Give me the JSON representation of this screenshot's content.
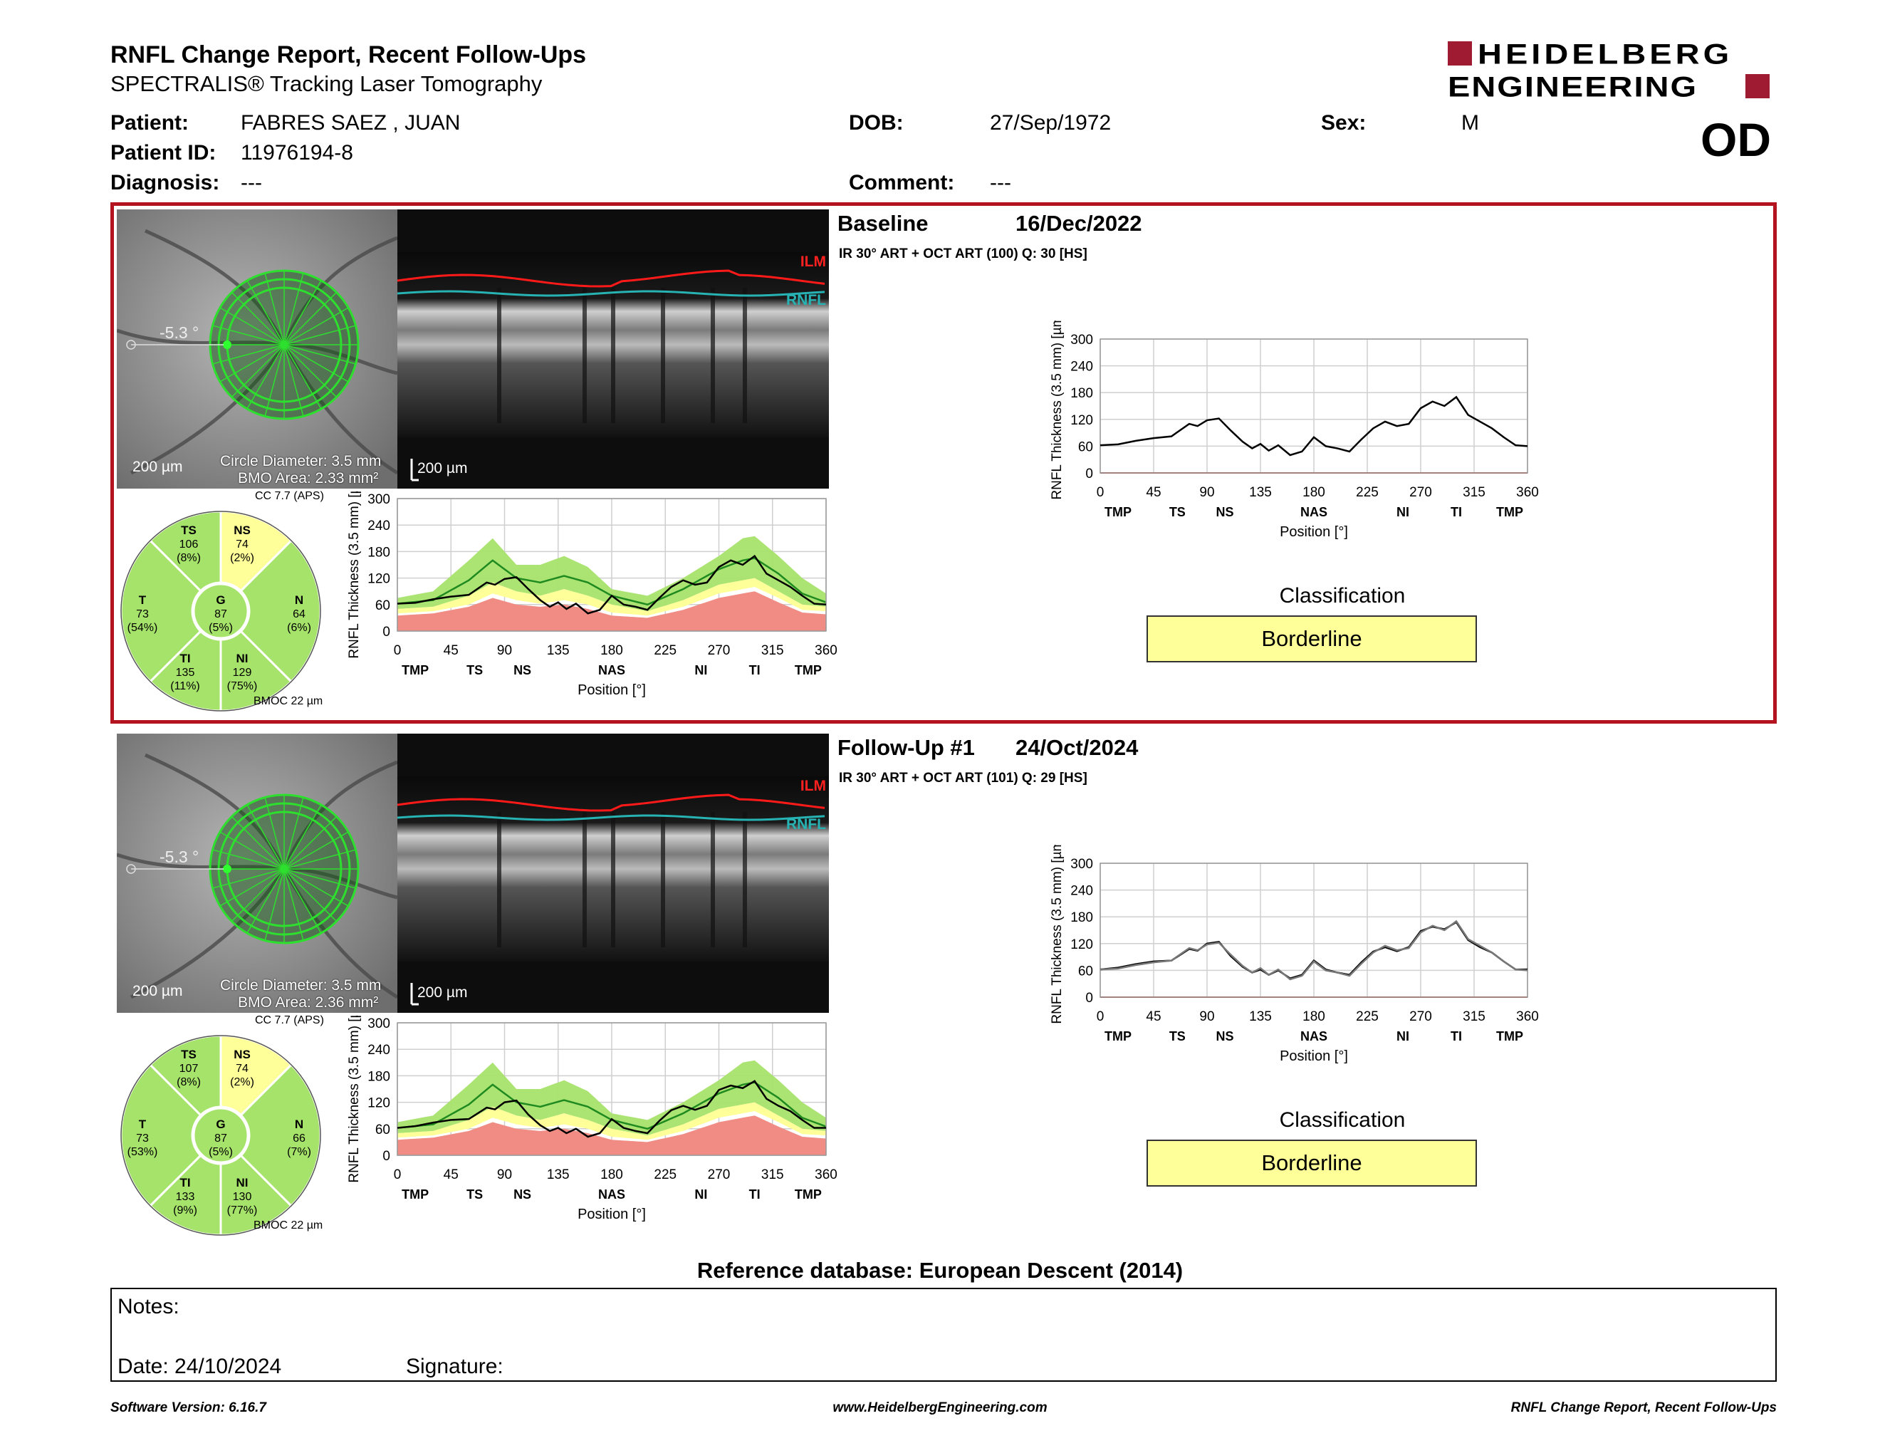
{
  "header": {
    "title": "RNFL Change Report, Recent Follow-Ups",
    "subtitle": "SPECTRALIS® Tracking Laser Tomography",
    "brand_line1": "HEIDELBERG",
    "brand_line2": "ENGINEERING",
    "eye": "OD"
  },
  "patient": {
    "patient_label": "Patient:",
    "patient_value": "FABRES SAEZ , JUAN",
    "id_label": "Patient ID:",
    "id_value": "11976194-8",
    "diagnosis_label": "Diagnosis:",
    "diagnosis_value": "---",
    "dob_label": "DOB:",
    "dob_value": "27/Sep/1972",
    "comment_label": "Comment:",
    "comment_value": "---",
    "sex_label": "Sex:",
    "sex_value": "M"
  },
  "colors": {
    "frame_red": "#b3141f",
    "brand_red": "#9e1b32",
    "normal_green": "#a6e36a",
    "borderline_yellow": "#ffff99",
    "below_red": "#f08c84"
  },
  "scans": [
    {
      "heading": "Baseline",
      "date": "16/Dec/2022",
      "info": "IR 30° ART + OCT ART (100) Q: 30 [HS]",
      "fundus_angle": "-5.3 °",
      "fundus_scale": "200 µm",
      "circle_diameter": "Circle Diameter: 3.5 mm",
      "bmo_area": "BMO Area: 2.33 mm²",
      "cc_label": "CC 7.7 (APS)",
      "oct_scale": "200 µm",
      "ilm_label": "ILM",
      "rnfl_label": "RNFL",
      "sectors": {
        "TS": {
          "label": "TS",
          "value": "106",
          "pct": "(8%)"
        },
        "NS": {
          "label": "NS",
          "value": "74",
          "pct": "(2%)"
        },
        "T": {
          "label": "T",
          "value": "73",
          "pct": "(54%)"
        },
        "G": {
          "label": "G",
          "value": "87",
          "pct": "(5%)"
        },
        "N": {
          "label": "N",
          "value": "64",
          "pct": "(6%)"
        },
        "TI": {
          "label": "TI",
          "value": "135",
          "pct": "(11%)"
        },
        "NI": {
          "label": "NI",
          "value": "129",
          "pct": "(75%)"
        }
      },
      "bmoc": "BMOC 22 µm",
      "classification_title": "Classification",
      "classification": "Borderline"
    },
    {
      "heading": "Follow-Up #1",
      "date": "24/Oct/2024",
      "info": "IR 30° ART + OCT ART (101) Q: 29 [HS]",
      "fundus_angle": "-5.3 °",
      "fundus_scale": "200 µm",
      "circle_diameter": "Circle Diameter: 3.5 mm",
      "bmo_area": "BMO Area: 2.36 mm²",
      "cc_label": "CC 7.7 (APS)",
      "oct_scale": "200 µm",
      "ilm_label": "ILM",
      "rnfl_label": "RNFL",
      "sectors": {
        "TS": {
          "label": "TS",
          "value": "107",
          "pct": "(8%)"
        },
        "NS": {
          "label": "NS",
          "value": "74",
          "pct": "(2%)"
        },
        "T": {
          "label": "T",
          "value": "73",
          "pct": "(53%)"
        },
        "G": {
          "label": "G",
          "value": "87",
          "pct": "(5%)"
        },
        "N": {
          "label": "N",
          "value": "66",
          "pct": "(7%)"
        },
        "TI": {
          "label": "TI",
          "value": "133",
          "pct": "(9%)"
        },
        "NI": {
          "label": "NI",
          "value": "130",
          "pct": "(77%)"
        }
      },
      "bmoc": "BMOC 22 µm",
      "classification_title": "Classification",
      "classification": "Borderline"
    }
  ],
  "chart_data": [
    {
      "type": "line",
      "ylabel": "RNFL Thickness (3.5 mm) [µm]",
      "xlabel": "Position [°]",
      "x_ticks": [
        0,
        45,
        90,
        135,
        180,
        225,
        270,
        315,
        360
      ],
      "y_ticks": [
        0,
        60,
        120,
        180,
        240,
        300
      ],
      "ylim": [
        0,
        300
      ],
      "xlim": [
        0,
        360
      ],
      "sector_labels": [
        "TMP",
        "TS",
        "NS",
        "NAS",
        "NI",
        "TI",
        "TMP"
      ],
      "sector_positions": [
        15,
        65,
        105,
        180,
        255,
        300,
        345
      ],
      "series": [
        {
          "x": [
            0,
            15,
            30,
            45,
            60,
            75,
            82,
            90,
            100,
            110,
            120,
            128,
            135,
            142,
            150,
            160,
            170,
            180,
            190,
            200,
            210,
            220,
            230,
            240,
            250,
            260,
            270,
            280,
            290,
            300,
            310,
            320,
            330,
            340,
            350,
            360
          ],
          "values": [
            62,
            64,
            72,
            78,
            82,
            110,
            105,
            118,
            122,
            95,
            70,
            55,
            65,
            50,
            62,
            40,
            48,
            80,
            60,
            55,
            48,
            75,
            100,
            115,
            105,
            110,
            145,
            160,
            150,
            170,
            130,
            115,
            100,
            80,
            62,
            60
          ]
        }
      ],
      "normal_band": {
        "x": [
          0,
          30,
          60,
          80,
          100,
          120,
          140,
          160,
          180,
          210,
          240,
          270,
          290,
          300,
          320,
          340,
          360
        ],
        "lower": [
          50,
          55,
          80,
          110,
          90,
          80,
          95,
          80,
          60,
          45,
          70,
          105,
          115,
          120,
          90,
          60,
          55
        ],
        "upper": [
          75,
          90,
          160,
          210,
          150,
          150,
          170,
          145,
          95,
          80,
          120,
          170,
          210,
          215,
          170,
          120,
          85
        ]
      },
      "borderline_lower": {
        "x": [
          0,
          30,
          60,
          80,
          100,
          120,
          140,
          160,
          180,
          210,
          240,
          270,
          290,
          300,
          320,
          340,
          360
        ],
        "values": [
          40,
          45,
          60,
          85,
          70,
          62,
          70,
          60,
          42,
          35,
          55,
          85,
          95,
          100,
          75,
          48,
          45
        ]
      },
      "below_lower": {
        "x": [
          0,
          30,
          60,
          80,
          100,
          120,
          140,
          160,
          180,
          210,
          240,
          270,
          290,
          300,
          320,
          340,
          360
        ],
        "values": [
          35,
          40,
          55,
          75,
          60,
          55,
          60,
          50,
          35,
          30,
          48,
          75,
          85,
          90,
          65,
          42,
          38
        ]
      },
      "mean": {
        "x": [
          0,
          30,
          60,
          80,
          100,
          120,
          140,
          160,
          180,
          210,
          240,
          270,
          290,
          300,
          320,
          340,
          360
        ],
        "values": [
          62,
          70,
          115,
          160,
          120,
          110,
          125,
          110,
          80,
          60,
          95,
          140,
          160,
          165,
          130,
          85,
          65
        ]
      }
    },
    {
      "type": "line",
      "ylabel": "RNFL Thickness (3.5 mm) [µm]",
      "xlabel": "Position [°]",
      "x_ticks": [
        0,
        45,
        90,
        135,
        180,
        225,
        270,
        315,
        360
      ],
      "y_ticks": [
        0,
        60,
        120,
        180,
        240,
        300
      ],
      "ylim": [
        0,
        300
      ],
      "xlim": [
        0,
        360
      ],
      "sector_labels": [
        "TMP",
        "TS",
        "NS",
        "NAS",
        "NI",
        "TI",
        "TMP"
      ],
      "sector_positions": [
        15,
        65,
        105,
        180,
        255,
        300,
        345
      ],
      "series": [
        {
          "x": [
            0,
            15,
            30,
            45,
            60,
            75,
            82,
            90,
            100,
            110,
            120,
            128,
            135,
            142,
            150,
            160,
            170,
            180,
            190,
            200,
            210,
            220,
            230,
            240,
            250,
            260,
            270,
            280,
            290,
            300,
            310,
            320,
            330,
            340,
            350,
            360
          ],
          "values": [
            62,
            66,
            74,
            80,
            82,
            108,
            104,
            120,
            124,
            92,
            68,
            55,
            62,
            50,
            60,
            42,
            50,
            82,
            62,
            55,
            50,
            78,
            102,
            112,
            103,
            112,
            148,
            158,
            152,
            168,
            128,
            112,
            100,
            80,
            62,
            62
          ]
        }
      ],
      "normal_band": {
        "x": [
          0,
          30,
          60,
          80,
          100,
          120,
          140,
          160,
          180,
          210,
          240,
          270,
          290,
          300,
          320,
          340,
          360
        ],
        "lower": [
          50,
          55,
          80,
          110,
          90,
          80,
          95,
          80,
          60,
          45,
          70,
          105,
          115,
          120,
          90,
          60,
          55
        ],
        "upper": [
          75,
          90,
          160,
          210,
          150,
          150,
          170,
          145,
          95,
          80,
          120,
          170,
          210,
          215,
          170,
          120,
          85
        ]
      },
      "borderline_lower": {
        "x": [
          0,
          30,
          60,
          80,
          100,
          120,
          140,
          160,
          180,
          210,
          240,
          270,
          290,
          300,
          320,
          340,
          360
        ],
        "values": [
          40,
          45,
          60,
          85,
          70,
          62,
          70,
          60,
          42,
          35,
          55,
          85,
          95,
          100,
          75,
          48,
          45
        ]
      },
      "below_lower": {
        "x": [
          0,
          30,
          60,
          80,
          100,
          120,
          140,
          160,
          180,
          210,
          240,
          270,
          290,
          300,
          320,
          340,
          360
        ],
        "values": [
          35,
          40,
          55,
          75,
          60,
          55,
          60,
          50,
          35,
          30,
          48,
          75,
          85,
          90,
          65,
          42,
          38
        ]
      },
      "mean": {
        "x": [
          0,
          30,
          60,
          80,
          100,
          120,
          140,
          160,
          180,
          210,
          240,
          270,
          290,
          300,
          320,
          340,
          360
        ],
        "values": [
          62,
          70,
          115,
          160,
          120,
          110,
          125,
          110,
          80,
          60,
          95,
          140,
          160,
          165,
          130,
          85,
          65
        ]
      }
    },
    {
      "type": "line",
      "ylabel": "RNFL Thickness (3.5 mm) [µm]",
      "xlabel": "Position [°]",
      "x_ticks": [
        0,
        45,
        90,
        135,
        180,
        225,
        270,
        315,
        360
      ],
      "y_ticks": [
        0,
        60,
        120,
        180,
        240,
        300
      ],
      "ylim": [
        0,
        300
      ],
      "xlim": [
        0,
        360
      ],
      "sector_labels": [
        "TMP",
        "TS",
        "NS",
        "NAS",
        "NI",
        "TI",
        "TMP"
      ],
      "sector_positions": [
        15,
        65,
        105,
        180,
        255,
        300,
        345
      ],
      "series": [
        {
          "x": [
            0,
            15,
            30,
            45,
            60,
            75,
            82,
            90,
            100,
            110,
            120,
            128,
            135,
            142,
            150,
            160,
            170,
            180,
            190,
            200,
            210,
            220,
            230,
            240,
            250,
            260,
            270,
            280,
            290,
            300,
            310,
            320,
            330,
            340,
            350,
            360
          ],
          "values": [
            62,
            64,
            72,
            78,
            82,
            110,
            105,
            118,
            122,
            95,
            70,
            55,
            65,
            50,
            62,
            40,
            48,
            80,
            60,
            55,
            48,
            75,
            100,
            115,
            105,
            110,
            145,
            160,
            150,
            170,
            130,
            115,
            100,
            80,
            62,
            60
          ]
        }
      ]
    },
    {
      "type": "line",
      "ylabel": "RNFL Thickness (3.5 mm) [µm]",
      "xlabel": "Position [°]",
      "x_ticks": [
        0,
        45,
        90,
        135,
        180,
        225,
        270,
        315,
        360
      ],
      "y_ticks": [
        0,
        60,
        120,
        180,
        240,
        300
      ],
      "ylim": [
        0,
        300
      ],
      "xlim": [
        0,
        360
      ],
      "sector_labels": [
        "TMP",
        "TS",
        "NS",
        "NAS",
        "NI",
        "TI",
        "TMP"
      ],
      "sector_positions": [
        15,
        65,
        105,
        180,
        255,
        300,
        345
      ],
      "series": [
        {
          "x": [
            0,
            15,
            30,
            45,
            60,
            75,
            82,
            90,
            100,
            110,
            120,
            128,
            135,
            142,
            150,
            160,
            170,
            180,
            190,
            200,
            210,
            220,
            230,
            240,
            250,
            260,
            270,
            280,
            290,
            300,
            310,
            320,
            330,
            340,
            350,
            360
          ],
          "values": [
            62,
            66,
            74,
            80,
            82,
            108,
            104,
            120,
            124,
            92,
            68,
            55,
            62,
            50,
            60,
            42,
            50,
            82,
            62,
            55,
            50,
            78,
            102,
            112,
            103,
            112,
            148,
            158,
            152,
            168,
            128,
            112,
            100,
            80,
            62,
            62
          ]
        },
        {
          "x": [
            0,
            15,
            30,
            45,
            60,
            75,
            82,
            90,
            100,
            110,
            120,
            128,
            135,
            142,
            150,
            160,
            170,
            180,
            190,
            200,
            210,
            220,
            230,
            240,
            250,
            260,
            270,
            280,
            290,
            300,
            310,
            320,
            330,
            340,
            350,
            360
          ],
          "values": [
            62,
            64,
            72,
            78,
            82,
            110,
            105,
            118,
            122,
            95,
            70,
            55,
            65,
            50,
            62,
            40,
            48,
            80,
            60,
            55,
            48,
            75,
            100,
            115,
            105,
            110,
            145,
            160,
            150,
            170,
            130,
            115,
            100,
            80,
            62,
            60
          ]
        }
      ]
    }
  ],
  "reference": "Reference database: European Descent (2014)",
  "notes": {
    "notes_label": "Notes:",
    "date_label": "Date: 24/10/2024",
    "signature_label": "Signature:"
  },
  "footer": {
    "left": "Software Version: 6.16.7",
    "center": "www.HeidelbergEngineering.com",
    "right": "RNFL Change Report, Recent Follow-Ups"
  }
}
